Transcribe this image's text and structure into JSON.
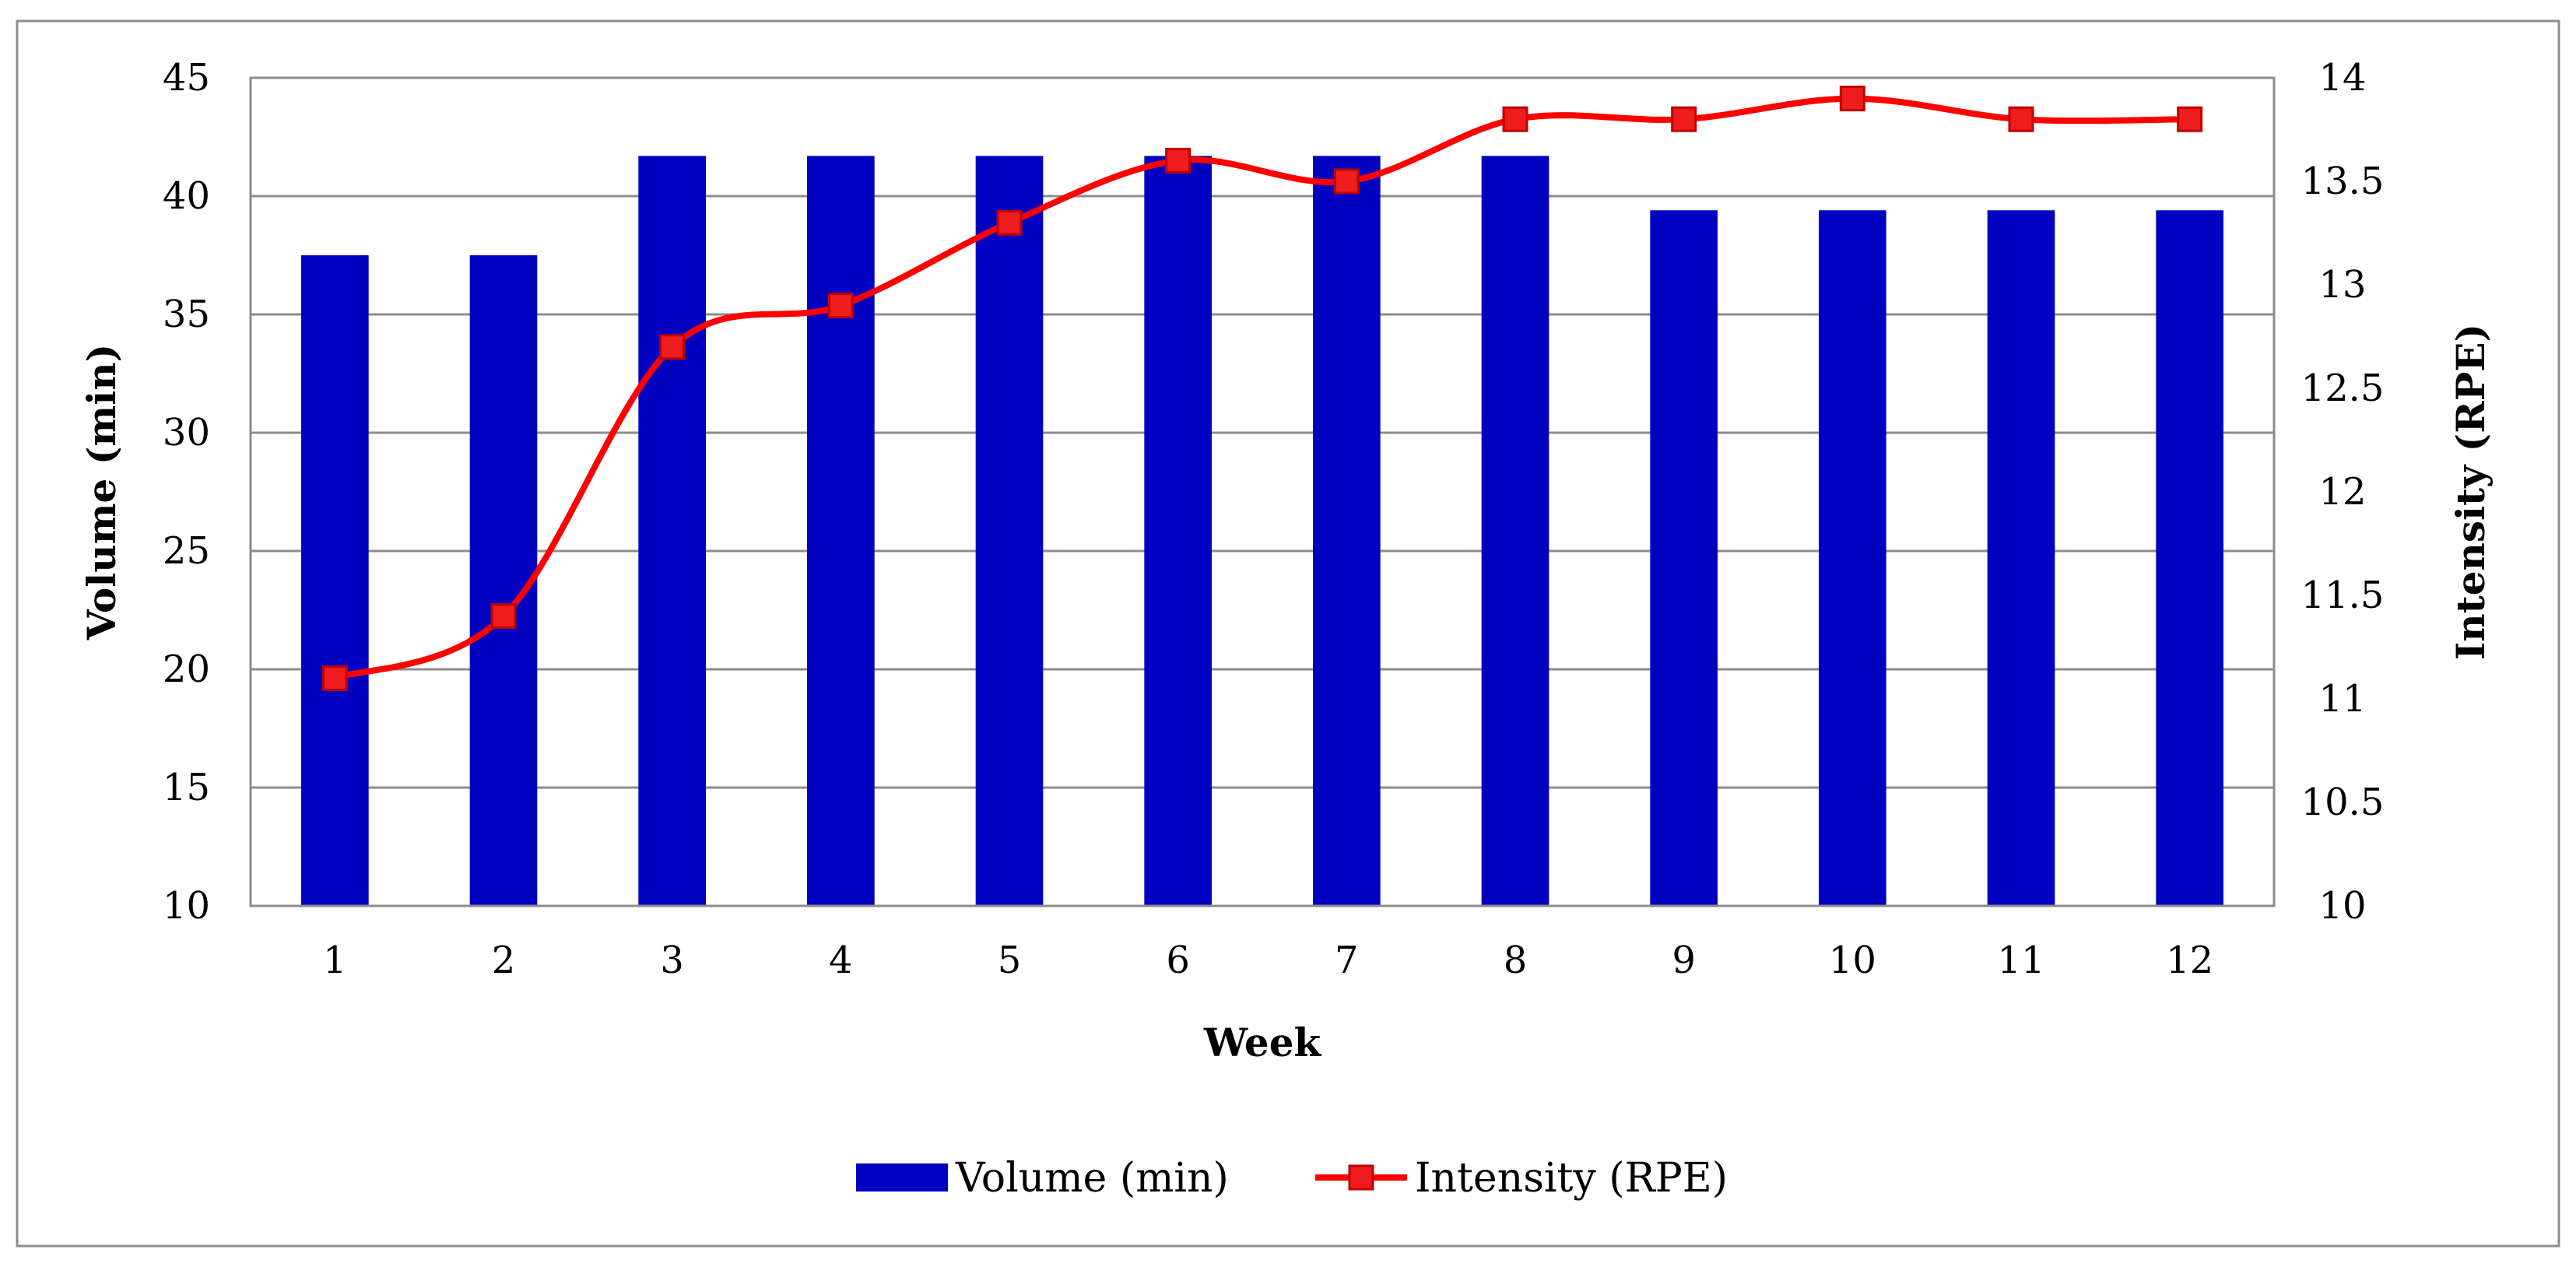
{
  "chart_data": {
    "type": "bar+line",
    "categories": [
      "1",
      "2",
      "3",
      "4",
      "5",
      "6",
      "7",
      "8",
      "9",
      "10",
      "11",
      "12"
    ],
    "series": [
      {
        "name": "Volume (min)",
        "type": "bar",
        "axis": "left",
        "color": "#0000c0",
        "values": [
          37.5,
          37.5,
          41.7,
          41.7,
          41.7,
          41.7,
          41.7,
          41.7,
          39.4,
          39.4,
          39.4,
          39.4
        ]
      },
      {
        "name": "Intensity (RPE)",
        "type": "line",
        "axis": "right",
        "color": "#ff0000",
        "marker": "square",
        "values": [
          11.1,
          11.4,
          12.7,
          12.9,
          13.3,
          13.6,
          13.5,
          13.8,
          13.8,
          13.9,
          13.8,
          13.8
        ]
      }
    ],
    "xlabel": "Week",
    "ylabel_left": "Volume (min)",
    "ylabel_right": "Intensity (RPE)",
    "ylim_left": [
      10,
      45
    ],
    "ylim_right": [
      10,
      14
    ],
    "yticks_left": [
      "10",
      "15",
      "20",
      "25",
      "30",
      "35",
      "40",
      "45"
    ],
    "yticks_right": [
      "10",
      "10.5",
      "11",
      "11.5",
      "12",
      "12.5",
      "13",
      "13.5",
      "14"
    ],
    "grid": true,
    "legend_position": "bottom",
    "legend": [
      "Volume (min)",
      "Intensity (RPE)"
    ]
  }
}
